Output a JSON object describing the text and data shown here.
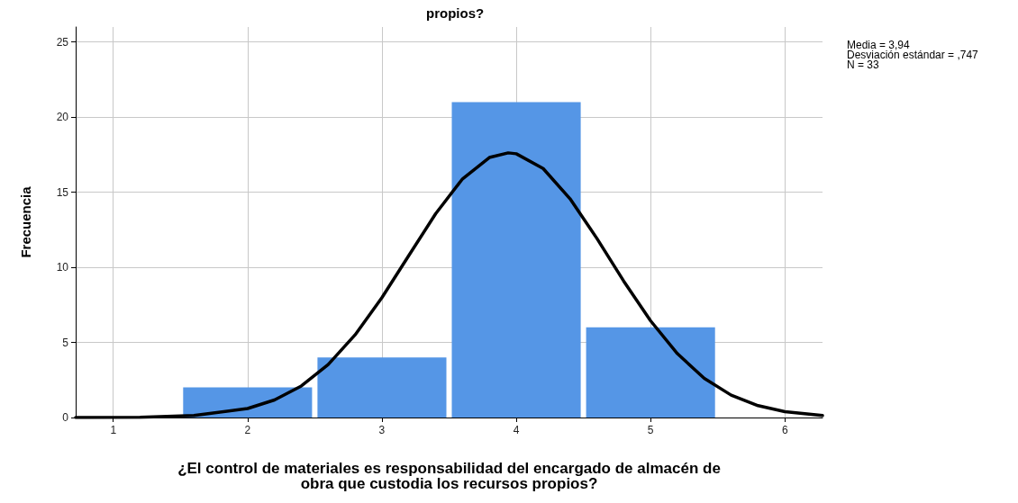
{
  "chart_data": {
    "type": "histogram",
    "title": "propios?",
    "xlabel": "¿El control de materiales es responsabilidad del encargado de almacén de obra que custodia los recursos propios?",
    "ylabel": "Frecuencia",
    "bins": [
      1.5,
      2.5,
      3.5,
      4.5,
      5.5
    ],
    "values": [
      2,
      4,
      21,
      6
    ],
    "color": "#5596e6",
    "series": [
      {
        "type": "line",
        "color": "#000000",
        "x": [
          0.72,
          0.8,
          1.2,
          1.6,
          2.0,
          2.2,
          2.4,
          2.6,
          2.8,
          3.0,
          3.2,
          3.4,
          3.6,
          3.8,
          3.94,
          4.0,
          4.2,
          4.4,
          4.6,
          4.8,
          5.0,
          5.2,
          5.4,
          5.6,
          5.8,
          6.0,
          6.28
        ],
        "values": [
          0.0,
          0.0,
          0.02,
          0.13,
          0.6,
          1.17,
          2.1,
          3.53,
          5.5,
          7.98,
          10.78,
          13.57,
          15.89,
          17.31,
          17.62,
          17.56,
          16.58,
          14.57,
          11.93,
          9.08,
          6.44,
          4.25,
          2.61,
          1.49,
          0.79,
          0.39,
          0.13
        ]
      }
    ],
    "xlim": [
      0.72,
      6.28
    ],
    "xticks": [
      1,
      2,
      3,
      4,
      5,
      6
    ],
    "ylim": [
      0,
      26
    ],
    "yticks": [
      0,
      5,
      10,
      15,
      20,
      25
    ],
    "grid": true,
    "marker": "none",
    "line_style": "solid",
    "annotations": [
      "Media = 3,94",
      "Desviación estándar = ,747",
      "N = 33"
    ]
  }
}
